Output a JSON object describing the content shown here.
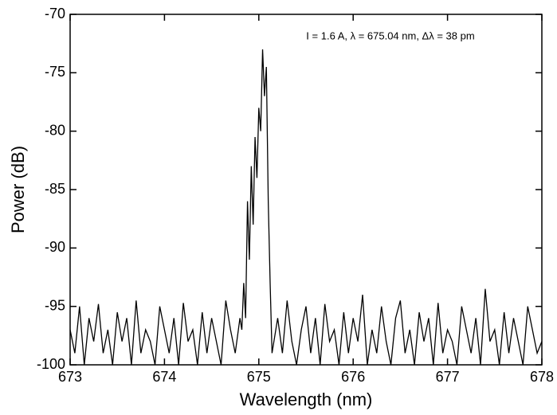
{
  "chart_data": {
    "type": "line",
    "xlabel": "Wavelength (nm)",
    "ylabel": "Power (dB)",
    "annotation": "I = 1.6 A, λ = 675.04 nm, Δλ = 38 pm",
    "color": "#000000",
    "xlim": [
      673,
      678
    ],
    "xticks": [
      673,
      674,
      675,
      676,
      677,
      678
    ],
    "ylim": [
      -100,
      -70
    ],
    "yticks": [
      -100,
      -95,
      -90,
      -85,
      -80,
      -75,
      -70
    ],
    "x": [
      673,
      673.05,
      673.1,
      673.15,
      673.2,
      673.25,
      673.3,
      673.35,
      673.4,
      673.45,
      673.5,
      673.55,
      673.6,
      673.65,
      673.7,
      673.75,
      673.8,
      673.85,
      673.9,
      673.95,
      674,
      674.05,
      674.1,
      674.15,
      674.2,
      674.25,
      674.3,
      674.35,
      674.4,
      674.45,
      674.5,
      674.55,
      674.6,
      674.65,
      674.7,
      674.75,
      674.8,
      674.82,
      674.84,
      674.86,
      674.88,
      674.9,
      674.92,
      674.94,
      674.96,
      674.98,
      675,
      675.02,
      675.04,
      675.06,
      675.08,
      675.1,
      675.12,
      675.14,
      675.2,
      675.25,
      675.3,
      675.35,
      675.4,
      675.45,
      675.5,
      675.55,
      675.6,
      675.65,
      675.7,
      675.75,
      675.8,
      675.85,
      675.9,
      675.95,
      676,
      676.05,
      676.1,
      676.15,
      676.2,
      676.25,
      676.3,
      676.35,
      676.4,
      676.45,
      676.5,
      676.55,
      676.6,
      676.65,
      676.7,
      676.75,
      676.8,
      676.85,
      676.9,
      676.95,
      677,
      677.05,
      677.1,
      677.15,
      677.2,
      677.25,
      677.3,
      677.35,
      677.4,
      677.45,
      677.5,
      677.55,
      677.6,
      677.65,
      677.7,
      677.75,
      677.8,
      677.85,
      677.9,
      677.95,
      678
    ],
    "values": [
      -97,
      -99,
      -95,
      -100,
      -96,
      -98,
      -94.8,
      -99,
      -97,
      -100,
      -95.5,
      -98,
      -96,
      -100,
      -94.5,
      -99,
      -97,
      -98,
      -100,
      -95,
      -97,
      -99,
      -96,
      -100,
      -94.7,
      -98,
      -97,
      -100,
      -95.5,
      -99,
      -96,
      -98,
      -100,
      -94.5,
      -97,
      -99,
      -96,
      -97,
      -93,
      -96,
      -86,
      -91,
      -83,
      -88,
      -80.5,
      -84,
      -78,
      -80,
      -73,
      -77,
      -74.5,
      -86,
      -93,
      -99,
      -96,
      -99,
      -94.5,
      -98,
      -100,
      -97,
      -95,
      -99,
      -96,
      -100,
      -94.8,
      -98,
      -97,
      -100,
      -95.5,
      -99,
      -96,
      -98,
      -94,
      -100,
      -97,
      -99,
      -95,
      -98,
      -100,
      -96,
      -94.5,
      -99,
      -97,
      -100,
      -95.5,
      -98,
      -96,
      -100,
      -94.7,
      -99,
      -97,
      -98,
      -100,
      -95,
      -97,
      -99,
      -96,
      -100,
      -93.5,
      -98,
      -97,
      -100,
      -95.5,
      -99,
      -96,
      -98,
      -100,
      -95,
      -97,
      -99,
      -98
    ]
  }
}
